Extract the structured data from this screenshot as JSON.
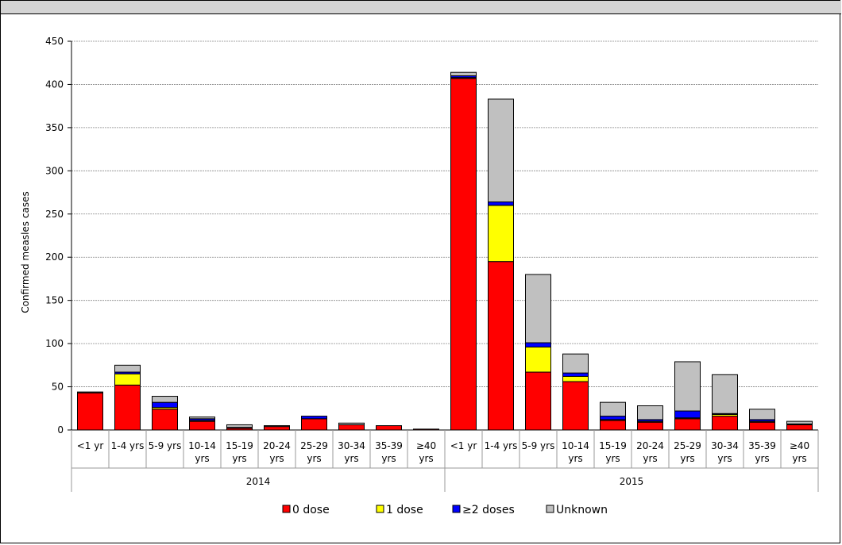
{
  "chart_data": {
    "type": "bar",
    "stacked": true,
    "title": "",
    "ylabel": "Confirmed measles cases",
    "xlabel": "",
    "ylim": [
      0,
      450
    ],
    "yticks": [
      0,
      50,
      100,
      150,
      200,
      250,
      300,
      350,
      400,
      450
    ],
    "grid": true,
    "legend_position": "bottom",
    "groups": [
      {
        "label": "2014",
        "categories": [
          "<1 yr",
          "1-4 yrs",
          "5-9 yrs",
          "10-14 yrs",
          "15-19 yrs",
          "20-24 yrs",
          "25-29 yrs",
          "30-34 yrs",
          "35-39 yrs",
          "≥40 yrs"
        ]
      },
      {
        "label": "2015",
        "categories": [
          "<1 yr",
          "1-4 yrs",
          "5-9 yrs",
          "10-14 yrs",
          "15-19 yrs",
          "20-24 yrs",
          "25-29 yrs",
          "30-34 yrs",
          "35-39 yrs",
          "≥40 yrs"
        ]
      }
    ],
    "series": [
      {
        "name": "0 dose",
        "color": "#ff0000",
        "values": [
          43,
          52,
          24,
          10,
          2,
          4,
          13,
          6,
          5,
          1,
          407,
          195,
          67,
          56,
          11,
          9,
          13,
          16,
          9,
          6
        ]
      },
      {
        "name": "1 dose",
        "color": "#ffff00",
        "values": [
          0,
          13,
          2,
          1,
          0,
          0,
          0,
          0,
          0,
          0,
          1,
          65,
          29,
          6,
          1,
          1,
          1,
          2,
          1,
          0
        ]
      },
      {
        "name": "≥2 doses",
        "color": "#0000ff",
        "values": [
          0,
          2,
          6,
          2,
          1,
          0,
          3,
          0,
          0,
          0,
          2,
          4,
          5,
          4,
          4,
          2,
          8,
          1,
          2,
          1
        ]
      },
      {
        "name": "Unknown",
        "color": "#c0c0c0",
        "values": [
          1,
          8,
          7,
          2,
          3,
          1,
          0,
          2,
          0,
          0,
          4,
          119,
          79,
          22,
          16,
          16,
          57,
          45,
          12,
          3
        ]
      }
    ]
  }
}
